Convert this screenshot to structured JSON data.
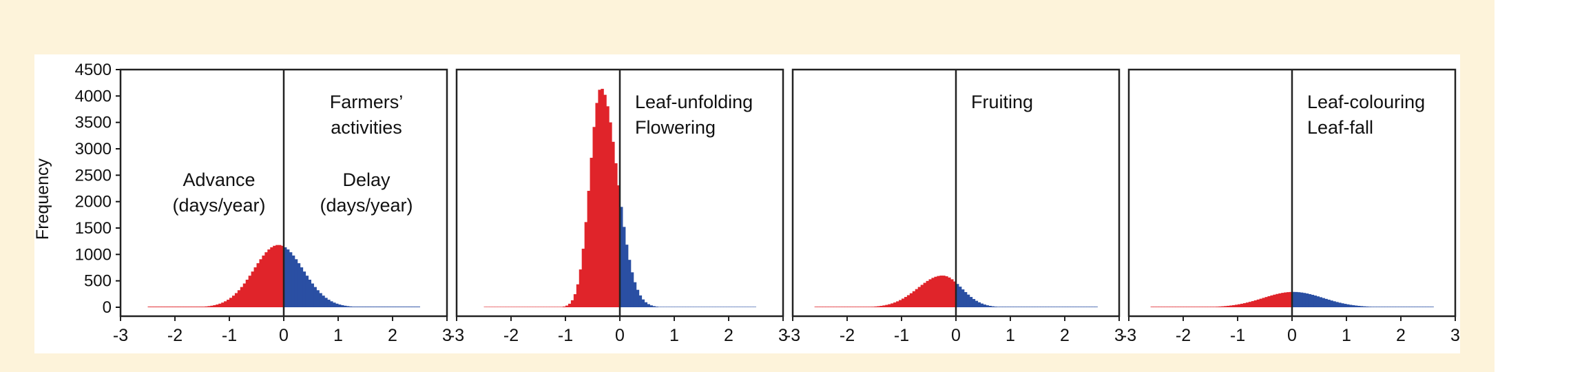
{
  "chart_data": {
    "type": "histogram",
    "ylabel": "Frequency",
    "xlim": [
      -3,
      3
    ],
    "ylim": [
      0,
      4500
    ],
    "yticks": [
      0,
      500,
      1000,
      1500,
      2000,
      2500,
      3000,
      3500,
      4000,
      4500
    ],
    "xticks": [
      -3,
      -2,
      -1,
      0,
      1,
      2,
      3
    ],
    "bin_width": 0.05,
    "colors": {
      "advance": "#e0242a",
      "delay": "#2a4fa3"
    },
    "panels": [
      {
        "labels": [
          "Farmers’",
          "activities"
        ],
        "annotations": [
          {
            "lines": [
              "Advance",
              "(days/year)"
            ]
          },
          {
            "lines": [
              "Delay",
              "(days/year)"
            ]
          }
        ],
        "peak": 1180,
        "peak_x": -0.1,
        "sigma_left": 0.45,
        "sigma_right": 0.45,
        "floor": 12,
        "range": [
          -2.5,
          2.5
        ]
      },
      {
        "labels": [
          "Leaf-unfolding",
          "Flowering"
        ],
        "annotations": [],
        "peak": 4150,
        "peak_x": -0.35,
        "sigma_left": 0.2,
        "sigma_right": 0.3,
        "floor": 8,
        "range": [
          -2.5,
          2.5
        ]
      },
      {
        "labels": [
          "Fruiting"
        ],
        "annotations": [],
        "peak": 600,
        "peak_x": -0.25,
        "sigma_left": 0.45,
        "sigma_right": 0.35,
        "floor": 10,
        "range": [
          -2.6,
          2.6
        ]
      },
      {
        "labels": [
          "Leaf-colouring",
          "Leaf-fall"
        ],
        "annotations": [],
        "peak": 290,
        "peak_x": 0.02,
        "sigma_left": 0.55,
        "sigma_right": 0.55,
        "floor": 10,
        "range": [
          -2.6,
          2.6
        ]
      }
    ]
  }
}
